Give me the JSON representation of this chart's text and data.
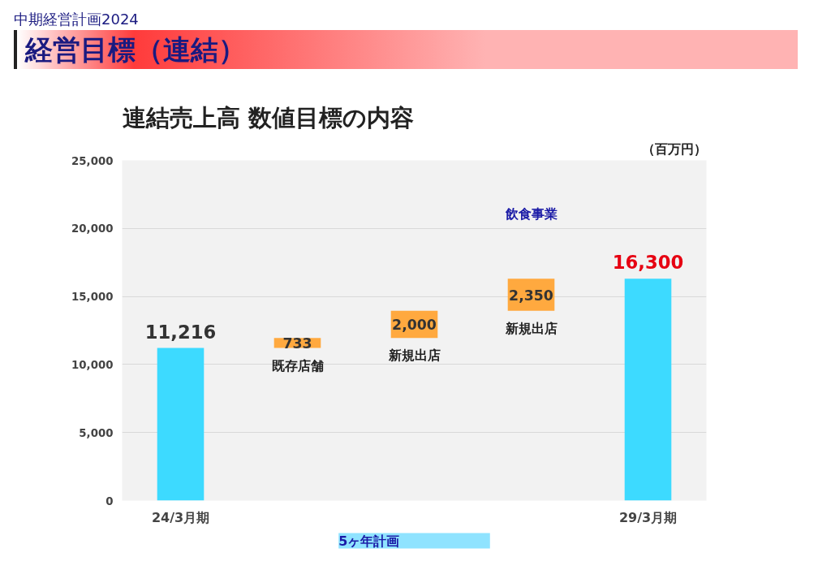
{
  "chart_data": {
    "type": "bar",
    "title": "連結売上高  数値目標の内容",
    "subtitle": "中期経営計画2024",
    "ylabel": "（百万円）",
    "categories": [
      "24/3月期",
      null,
      null,
      null,
      "29/3月期"
    ],
    "values": [
      11216,
      733,
      2000,
      2350,
      16300
    ],
    "base": [
      0,
      11216,
      11949,
      13949,
      0
    ],
    "colors": [
      "#3ddaff",
      "#ffa93f",
      "#ffa93f",
      "#ffa93f",
      "#3ddaff"
    ],
    "value_labels": [
      "11,216",
      "733",
      "2,000",
      "2,350",
      "16,300"
    ],
    "ylim": [
      0,
      25000
    ],
    "yticks": [
      0,
      {
        "value": 5000,
        "label": "5,000"
      },
      {
        "value": 10000,
        "label": "10,000"
      },
      {
        "value": 15000,
        "label": "15,000"
      },
      {
        "value": 20000,
        "label": "20,000"
      },
      {
        "value": 25000,
        "label": "25,000"
      }
    ],
    "grid": "y",
    "annotations": [
      "経営目標（連結）",
      "既存店舗",
      "新規出店",
      "新規出店",
      "飲食事業",
      "5ヶ年計画"
    ]
  }
}
